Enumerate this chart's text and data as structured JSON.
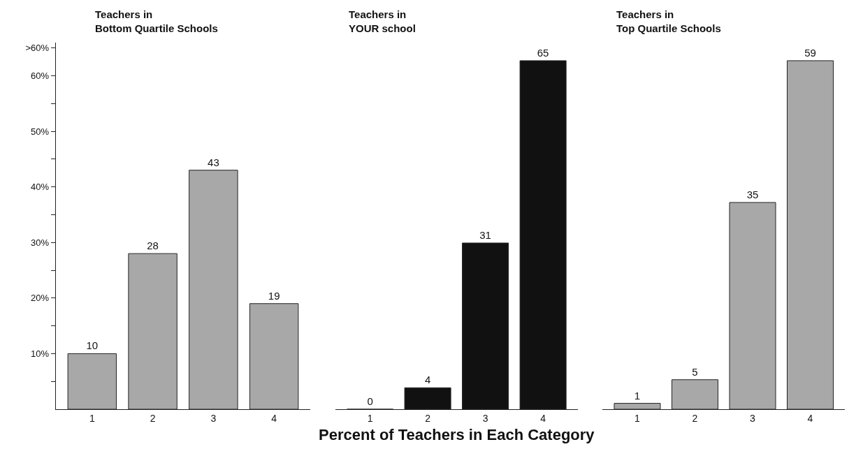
{
  "chart_data": [
    {
      "type": "bar",
      "title": "Teachers in\nBottom Quartile Schools",
      "categories": [
        "1",
        "2",
        "3",
        "4"
      ],
      "values": [
        10,
        28,
        43,
        19
      ],
      "color": "#a8a8a8",
      "data_labels": true,
      "ylim": [
        0,
        66
      ],
      "yticks": [
        {
          "value": 5,
          "label": null
        },
        {
          "value": 10,
          "label": "10%"
        },
        {
          "value": 15,
          "label": null
        },
        {
          "value": 20,
          "label": "20%"
        },
        {
          "value": 25,
          "label": null
        },
        {
          "value": 30,
          "label": "30%"
        },
        {
          "value": 35,
          "label": null
        },
        {
          "value": 40,
          "label": "40%"
        },
        {
          "value": 45,
          "label": null
        },
        {
          "value": 50,
          "label": "50%"
        },
        {
          "value": 55,
          "label": null
        },
        {
          "value": 60,
          "label": "60%"
        },
        {
          "value": 65,
          "label": ">60%"
        }
      ]
    },
    {
      "type": "bar",
      "title": "Teachers in\nYOUR school",
      "xlabel": "Percent of Teachers in Each Category",
      "categories": [
        "1",
        "2",
        "3",
        "4"
      ],
      "values": [
        0,
        4,
        31,
        65
      ],
      "color": "#111111",
      "data_labels": true,
      "tick_labels": "x"
    },
    {
      "type": "bar",
      "title": "Teachers in\nTop Quartile Schools",
      "categories": [
        "1",
        "2",
        "3",
        "4"
      ],
      "values": [
        1,
        5,
        35,
        59
      ],
      "color": "#a8a8a8",
      "data_labels": true,
      "tick_labels": "x"
    }
  ]
}
